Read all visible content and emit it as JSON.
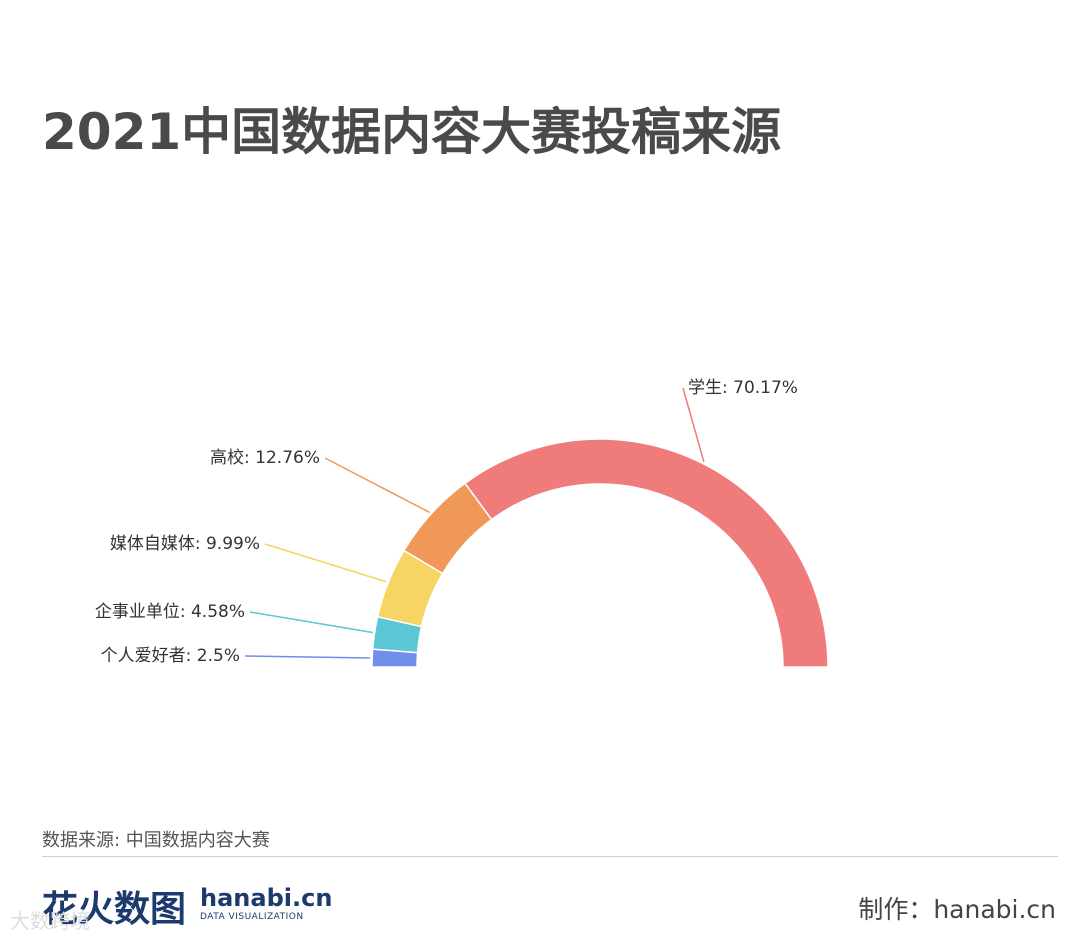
{
  "title": "2021中国数据内容大赛投稿来源",
  "source": "数据来源: 中国数据内容大赛",
  "footer": {
    "logo_cn": "花火数图",
    "logo_en": "hanabi.cn",
    "logo_sub": "DATA VISUALIZATION",
    "maker": "制作：hanabi.cn",
    "watermark": "大数跨境"
  },
  "chart_data": {
    "type": "pie",
    "variant": "half-donut",
    "title": "2021中国数据内容大赛投稿来源",
    "slices": [
      {
        "name": "个人爱好者",
        "value": 2.5,
        "label": "个人爱好者: 2.5%",
        "color": "#6f8ee8"
      },
      {
        "name": "企事业单位",
        "value": 4.58,
        "label": "企事业单位: 4.58%",
        "color": "#5bc6d6"
      },
      {
        "name": "媒体自媒体",
        "value": 9.99,
        "label": "媒体自媒体: 9.99%",
        "color": "#f7d464"
      },
      {
        "name": "高校",
        "value": 12.76,
        "label": "高校: 12.76%",
        "color": "#ef9857"
      },
      {
        "name": "学生",
        "value": 70.17,
        "label": "学生: 70.17%",
        "color": "#ef7b7a"
      }
    ]
  }
}
